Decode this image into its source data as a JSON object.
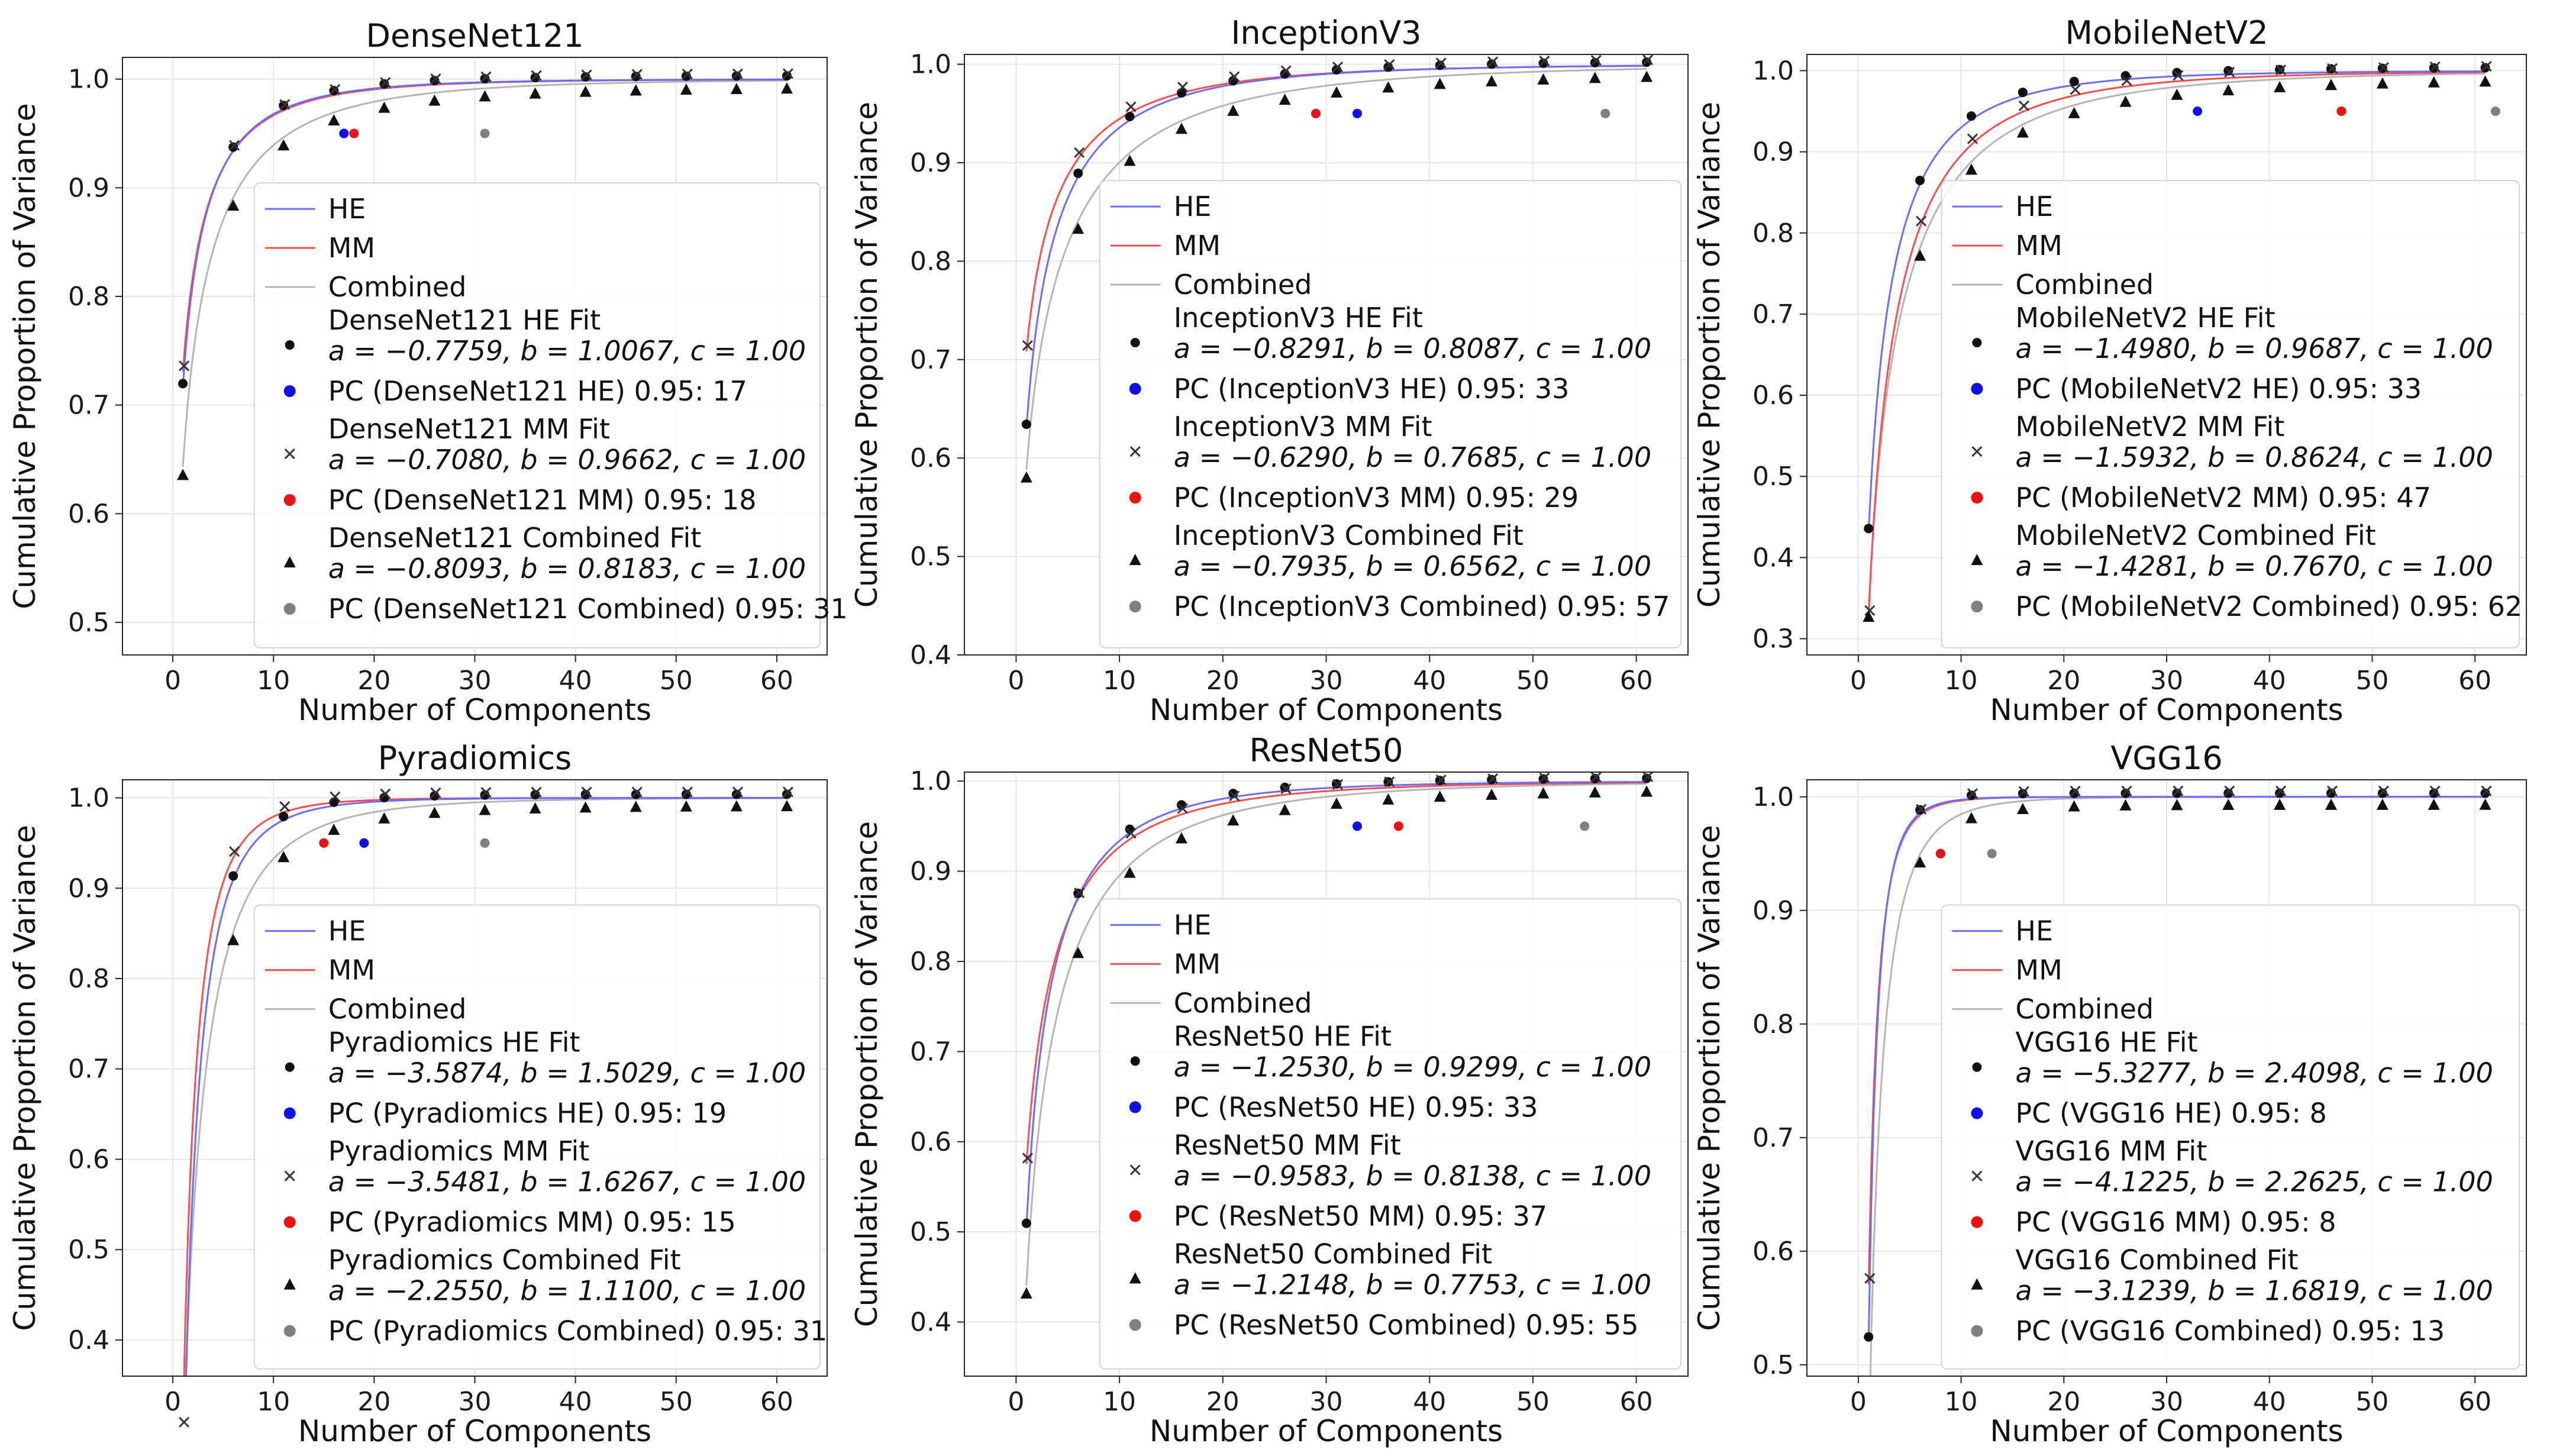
{
  "layout": {
    "rows": 2,
    "cols": 3
  },
  "common": {
    "xlabel": "Number of Components",
    "ylabel": "Cumulative Proportion of Variance",
    "legend_labels": [
      "HE",
      "MM",
      "Combined"
    ],
    "colors": {
      "HE": "#6b6bff",
      "MM": "#ff4d4d",
      "Combined": "#b4b4b4",
      "markers": "#111111",
      "pc_HE": "#1010e8",
      "pc_MM": "#ee1111",
      "pc_Combined": "#808080",
      "grid": "#e6e6e6"
    }
  },
  "chart_data": [
    {
      "title": "DenseNet121",
      "type": "line",
      "xlim": [
        -5,
        65
      ],
      "ylim": [
        0.47,
        1.02
      ],
      "xticks": [
        0,
        10,
        20,
        30,
        40,
        50,
        60
      ],
      "yticks": [
        0.5,
        0.6,
        0.7,
        0.8,
        0.9,
        1.0
      ],
      "ytick_labels": [
        "0.5",
        "0.6",
        "0.7",
        "0.8",
        "0.9",
        "1.0"
      ],
      "fits": {
        "HE": {
          "a": -0.7759,
          "b": 1.0067
        },
        "MM": {
          "a": -0.708,
          "b": 0.9662
        },
        "Combined": {
          "a": -0.8093,
          "b": 0.8183
        }
      },
      "x_samples": [
        1,
        6,
        11,
        16,
        21,
        26,
        31,
        36,
        41,
        46,
        51,
        56,
        61
      ],
      "pc": {
        "HE": 17,
        "MM": 18,
        "Combined": 31
      },
      "legend": {
        "he_fit": "DenseNet121 HE Fit",
        "he_params": "a = −0.7759, b = 1.0067, c = 1.00",
        "he_pc": "PC (DenseNet121 HE) 0.95: 17",
        "mm_fit": "DenseNet121 MM Fit",
        "mm_params": "a = −0.7080, b = 0.9662, c = 1.00",
        "mm_pc": "PC (DenseNet121 MM) 0.95: 18",
        "cb_fit": "DenseNet121 Combined Fit",
        "cb_params": "a = −0.8093, b = 0.8183, c = 1.00",
        "cb_pc": "PC (DenseNet121 Combined) 0.95: 31"
      }
    },
    {
      "title": "InceptionV3",
      "type": "line",
      "xlim": [
        -5,
        65
      ],
      "ylim": [
        0.4,
        1.01
      ],
      "xticks": [
        0,
        10,
        20,
        30,
        40,
        50,
        60
      ],
      "yticks": [
        0.4,
        0.5,
        0.6,
        0.7,
        0.8,
        0.9,
        1.0
      ],
      "ytick_labels": [
        "0.4",
        "0.5",
        "0.6",
        "0.7",
        "0.8",
        "0.9",
        "1.0"
      ],
      "fits": {
        "HE": {
          "a": -0.8291,
          "b": 0.8087
        },
        "MM": {
          "a": -0.629,
          "b": 0.7685
        },
        "Combined": {
          "a": -0.7935,
          "b": 0.6562
        }
      },
      "x_samples": [
        1,
        6,
        11,
        16,
        21,
        26,
        31,
        36,
        41,
        46,
        51,
        56,
        61
      ],
      "pc": {
        "HE": 33,
        "MM": 29,
        "Combined": 57
      },
      "legend": {
        "he_fit": "InceptionV3 HE Fit",
        "he_params": "a = −0.8291, b = 0.8087, c = 1.00",
        "he_pc": "PC (InceptionV3 HE) 0.95: 33",
        "mm_fit": "InceptionV3 MM Fit",
        "mm_params": "a = −0.6290, b = 0.7685, c = 1.00",
        "mm_pc": "PC (InceptionV3 MM) 0.95: 29",
        "cb_fit": "InceptionV3 Combined Fit",
        "cb_params": "a = −0.7935, b = 0.6562, c = 1.00",
        "cb_pc": "PC (InceptionV3 Combined) 0.95: 57"
      }
    },
    {
      "title": "MobileNetV2",
      "type": "line",
      "xlim": [
        -5,
        65
      ],
      "ylim": [
        0.28,
        1.02
      ],
      "xticks": [
        0,
        10,
        20,
        30,
        40,
        50,
        60
      ],
      "yticks": [
        0.3,
        0.4,
        0.5,
        0.6,
        0.7,
        0.8,
        0.9,
        1.0
      ],
      "ytick_labels": [
        "0.3",
        "0.4",
        "0.5",
        "0.6",
        "0.7",
        "0.8",
        "0.9",
        "1.0"
      ],
      "fits": {
        "HE": {
          "a": -1.498,
          "b": 0.9687
        },
        "MM": {
          "a": -1.5932,
          "b": 0.8624
        },
        "Combined": {
          "a": -1.4281,
          "b": 0.767
        }
      },
      "x_samples": [
        1,
        6,
        11,
        16,
        21,
        26,
        31,
        36,
        41,
        46,
        51,
        56,
        61
      ],
      "pc": {
        "HE": 33,
        "MM": 47,
        "Combined": 62
      },
      "legend": {
        "he_fit": "MobileNetV2 HE Fit",
        "he_params": "a = −1.4980, b = 0.9687, c = 1.00",
        "he_pc": "PC (MobileNetV2 HE) 0.95: 33",
        "mm_fit": "MobileNetV2 MM Fit",
        "mm_params": "a = −1.5932, b = 0.8624, c = 1.00",
        "mm_pc": "PC (MobileNetV2 MM) 0.95: 47",
        "cb_fit": "MobileNetV2 Combined Fit",
        "cb_params": "a = −1.4281, b = 0.7670, c = 1.00",
        "cb_pc": "PC (MobileNetV2 Combined) 0.95: 62"
      }
    },
    {
      "title": "Pyradiomics",
      "type": "line",
      "xlim": [
        -5,
        65
      ],
      "ylim": [
        0.36,
        1.02
      ],
      "xticks": [
        0,
        10,
        20,
        30,
        40,
        50,
        60
      ],
      "yticks": [
        0.4,
        0.5,
        0.6,
        0.7,
        0.8,
        0.9,
        1.0
      ],
      "ytick_labels": [
        "0.4",
        "0.5",
        "0.6",
        "0.7",
        "0.8",
        "0.9",
        "1.0"
      ],
      "fits": {
        "HE": {
          "a": -3.5874,
          "b": 1.5029
        },
        "MM": {
          "a": -3.5481,
          "b": 1.6267
        },
        "Combined": {
          "a": -2.255,
          "b": 1.11
        }
      },
      "x_samples": [
        1,
        6,
        11,
        16,
        21,
        26,
        31,
        36,
        41,
        46,
        51,
        56,
        61
      ],
      "pc": {
        "HE": 19,
        "MM": 15,
        "Combined": 31
      },
      "legend": {
        "he_fit": "Pyradiomics HE Fit",
        "he_params": "a = −3.5874, b = 1.5029, c = 1.00",
        "he_pc": "PC (Pyradiomics HE) 0.95: 19",
        "mm_fit": "Pyradiomics MM Fit",
        "mm_params": "a = −3.5481, b = 1.6267, c = 1.00",
        "mm_pc": "PC (Pyradiomics MM) 0.95: 15",
        "cb_fit": "Pyradiomics Combined Fit",
        "cb_params": "a = −2.2550, b = 1.1100, c = 1.00",
        "cb_pc": "PC (Pyradiomics Combined) 0.95: 31"
      }
    },
    {
      "title": "ResNet50",
      "type": "line",
      "xlim": [
        -5,
        65
      ],
      "ylim": [
        0.34,
        1.01
      ],
      "xticks": [
        0,
        10,
        20,
        30,
        40,
        50,
        60
      ],
      "yticks": [
        0.4,
        0.5,
        0.6,
        0.7,
        0.8,
        0.9,
        1.0
      ],
      "ytick_labels": [
        "0.4",
        "0.5",
        "0.6",
        "0.7",
        "0.8",
        "0.9",
        "1.0"
      ],
      "fits": {
        "HE": {
          "a": -1.253,
          "b": 0.9299
        },
        "MM": {
          "a": -0.9583,
          "b": 0.8138
        },
        "Combined": {
          "a": -1.2148,
          "b": 0.7753
        }
      },
      "x_samples": [
        1,
        6,
        11,
        16,
        21,
        26,
        31,
        36,
        41,
        46,
        51,
        56,
        61
      ],
      "pc": {
        "HE": 33,
        "MM": 37,
        "Combined": 55
      },
      "legend": {
        "he_fit": "ResNet50 HE Fit",
        "he_params": "a = −1.2530, b = 0.9299, c = 1.00",
        "he_pc": "PC (ResNet50 HE) 0.95: 33",
        "mm_fit": "ResNet50 MM Fit",
        "mm_params": "a = −0.9583, b = 0.8138, c = 1.00",
        "mm_pc": "PC (ResNet50 MM) 0.95: 37",
        "cb_fit": "ResNet50 Combined Fit",
        "cb_params": "a = −1.2148, b = 0.7753, c = 1.00",
        "cb_pc": "PC (ResNet50 Combined) 0.95: 55"
      }
    },
    {
      "title": "VGG16",
      "type": "line",
      "xlim": [
        -5,
        65
      ],
      "ylim": [
        0.49,
        1.015
      ],
      "xticks": [
        0,
        10,
        20,
        30,
        40,
        50,
        60
      ],
      "yticks": [
        0.5,
        0.6,
        0.7,
        0.8,
        0.9,
        1.0
      ],
      "ytick_labels": [
        "0.5",
        "0.6",
        "0.7",
        "0.8",
        "0.9",
        "1.0"
      ],
      "fits": {
        "HE": {
          "a": -5.3277,
          "b": 2.4098
        },
        "MM": {
          "a": -4.1225,
          "b": 2.2625
        },
        "Combined": {
          "a": -3.1239,
          "b": 1.6819
        }
      },
      "x_samples": [
        1,
        6,
        11,
        16,
        21,
        26,
        31,
        36,
        41,
        46,
        51,
        56,
        61
      ],
      "pc": {
        "HE": 8,
        "MM": 8,
        "Combined": 13
      },
      "legend": {
        "he_fit": "VGG16 HE Fit",
        "he_params": "a = −5.3277, b = 2.4098, c = 1.00",
        "he_pc": "PC (VGG16 HE) 0.95: 8",
        "mm_fit": "VGG16 MM Fit",
        "mm_params": "a = −4.1225, b = 2.2625, c = 1.00",
        "mm_pc": "PC (VGG16 MM) 0.95: 8",
        "cb_fit": "VGG16 Combined Fit",
        "cb_params": "a = −3.1239, b = 1.6819, c = 1.00",
        "cb_pc": "PC (VGG16 Combined) 0.95: 13"
      }
    }
  ]
}
